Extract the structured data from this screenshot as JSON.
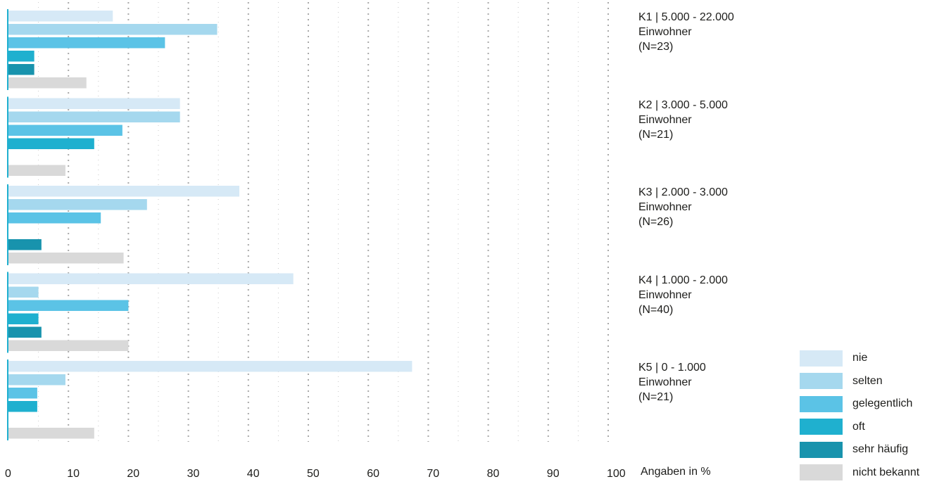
{
  "chart_data": {
    "type": "bar",
    "orientation": "horizontal",
    "xlabel": "Angaben in %",
    "xlim": [
      0,
      100
    ],
    "xticks": [
      0,
      10,
      20,
      30,
      40,
      50,
      60,
      70,
      80,
      90,
      100
    ],
    "grid": "vertical dotted",
    "legend_placement": "bottom-right",
    "categories": [
      {
        "line1": "K1 | 5.000 - 22.000",
        "line2": "Einwohner",
        "line3": "(N=23)"
      },
      {
        "line1": "K2 | 3.000 - 5.000",
        "line2": "Einwohner",
        "line3": "(N=21)"
      },
      {
        "line1": "K3 | 2.000 - 3.000",
        "line2": "Einwohner",
        "line3": "(N=26)"
      },
      {
        "line1": "K4 | 1.000 - 2.000",
        "line2": "Einwohner",
        "line3": "(N=40)"
      },
      {
        "line1": "K5 | 0 - 1.000",
        "line2": "Einwohner",
        "line3": "(N=21)"
      }
    ],
    "series": [
      {
        "name": "nie",
        "color": "#d6e9f6",
        "values": [
          17.4,
          28.6,
          38.5,
          47.5,
          67.3
        ]
      },
      {
        "name": "selten",
        "color": "#a5d8ee",
        "values": [
          34.8,
          28.6,
          23.1,
          5.0,
          9.5
        ]
      },
      {
        "name": "gelegentlich",
        "color": "#5bc3e6",
        "values": [
          26.1,
          19.0,
          15.4,
          20.0,
          4.8
        ]
      },
      {
        "name": "oft",
        "color": "#1fb0cf",
        "values": [
          4.3,
          14.3,
          0,
          5.0,
          4.8
        ]
      },
      {
        "name": "sehr häufig",
        "color": "#1893ad",
        "values": [
          4.3,
          0,
          5.5,
          5.5,
          0
        ]
      },
      {
        "name": "nicht bekannt",
        "color": "#d9d9d9",
        "values": [
          13.0,
          9.5,
          19.2,
          20.0,
          14.3
        ]
      }
    ]
  }
}
